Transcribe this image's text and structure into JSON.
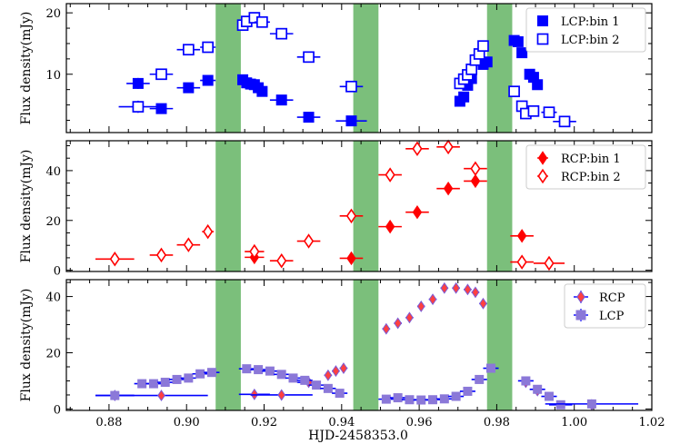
{
  "chart_data": {
    "type": "scatter",
    "xlabel": "HJD-2458353.0",
    "xlim": [
      0.869,
      1.02
    ],
    "x_ticks": [
      0.88,
      0.9,
      0.92,
      0.94,
      0.96,
      0.98,
      1.0,
      1.02
    ],
    "x_tick_labels": [
      "0.88",
      "0.90",
      "0.92",
      "0.94",
      "0.96",
      "0.98",
      "1.00",
      "1.02"
    ],
    "shaded_regions": [
      [
        0.9075,
        0.914
      ],
      [
        0.943,
        0.9495
      ],
      [
        0.9775,
        0.984
      ]
    ],
    "shade_color": "#7bbf7b",
    "panels": [
      {
        "ylabel": "Flux density(mJy)",
        "ylim": [
          0.5,
          21.5
        ],
        "y_ticks": [
          10,
          20
        ],
        "y_tick_labels": [
          "10",
          "20"
        ],
        "legend": [
          "LCP:bin 1",
          "LCP:bin 2"
        ],
        "series": [
          {
            "name": "LCP:bin 1",
            "color": "#0000ff",
            "marker": "square-filled",
            "points": [
              [
                0.8875,
                8.5,
                0.003,
                0.9
              ],
              [
                0.8935,
                4.4,
                0.003,
                0.5
              ],
              [
                0.9005,
                7.8,
                0.003,
                0.5
              ],
              [
                0.9055,
                9.0,
                0.002,
                0.5
              ],
              [
                0.9145,
                9.1,
                0.001,
                0.5
              ],
              [
                0.9155,
                8.6,
                0.001,
                0.5
              ],
              [
                0.9165,
                8.4,
                0.001,
                0.5
              ],
              [
                0.9175,
                8.3,
                0.001,
                0.5
              ],
              [
                0.9185,
                7.8,
                0.001,
                0.5
              ],
              [
                0.9195,
                7.2,
                0.001,
                0.5
              ],
              [
                0.9245,
                5.8,
                0.003,
                0.5
              ],
              [
                0.9315,
                3.0,
                0.003,
                0.5
              ],
              [
                0.9425,
                2.4,
                0.004,
                0.5
              ],
              [
                0.9705,
                5.6,
                0.0005,
                0.5
              ],
              [
                0.9715,
                6.3,
                0.0005,
                0.5
              ],
              [
                0.9725,
                8.2,
                0.0005,
                0.5
              ],
              [
                0.9735,
                9.3,
                0.0005,
                0.5
              ],
              [
                0.9765,
                11.6,
                0.0005,
                0.5
              ],
              [
                0.9775,
                12.0,
                0.0005,
                0.5
              ],
              [
                0.9845,
                15.5,
                0.0005,
                0.5
              ],
              [
                0.9855,
                15.3,
                0.0005,
                0.5
              ],
              [
                0.9865,
                13.5,
                0.0005,
                0.5
              ],
              [
                0.9885,
                10.0,
                0.0005,
                0.5
              ],
              [
                0.9895,
                9.5,
                0.0005,
                0.5
              ],
              [
                0.9905,
                8.3,
                0.0005,
                0.5
              ]
            ]
          },
          {
            "name": "LCP:bin 2",
            "color": "#0000ff",
            "marker": "square-open",
            "points": [
              [
                0.8875,
                4.7,
                0.005,
                1.0
              ],
              [
                0.8935,
                10.0,
                0.003,
                0.5
              ],
              [
                0.9005,
                14.0,
                0.003,
                0.5
              ],
              [
                0.9055,
                14.4,
                0.002,
                0.5
              ],
              [
                0.9145,
                18.0,
                0.001,
                0.5
              ],
              [
                0.9155,
                18.6,
                0.001,
                0.5
              ],
              [
                0.9175,
                19.2,
                0.001,
                0.5
              ],
              [
                0.9195,
                18.5,
                0.002,
                0.5
              ],
              [
                0.9245,
                16.6,
                0.003,
                0.5
              ],
              [
                0.9315,
                12.8,
                0.003,
                0.5
              ],
              [
                0.9425,
                8.0,
                0.003,
                0.5
              ],
              [
                0.9705,
                8.5,
                0.0005,
                0.5
              ],
              [
                0.9715,
                9.2,
                0.0005,
                0.5
              ],
              [
                0.9725,
                9.9,
                0.0005,
                0.5
              ],
              [
                0.9735,
                10.8,
                0.0005,
                0.5
              ],
              [
                0.9745,
                12.3,
                0.0005,
                0.5
              ],
              [
                0.9755,
                13.3,
                0.0005,
                0.5
              ],
              [
                0.9765,
                14.6,
                0.0005,
                0.5
              ],
              [
                0.9845,
                7.2,
                0.0005,
                0.5
              ],
              [
                0.9865,
                4.8,
                0.0005,
                0.5
              ],
              [
                0.9875,
                3.6,
                0.001,
                0.5
              ],
              [
                0.9895,
                4.0,
                0.001,
                0.5
              ],
              [
                0.9935,
                3.8,
                0.002,
                0.5
              ],
              [
                0.9975,
                2.3,
                0.003,
                0.5
              ]
            ]
          }
        ]
      },
      {
        "ylabel": "Flux density(mJy)",
        "ylim": [
          -0.5,
          52
        ],
        "y_ticks": [
          0,
          20,
          40
        ],
        "y_tick_labels": [
          "0",
          "20",
          "40"
        ],
        "legend": [
          "RCP:bin 1",
          "RCP:bin 2"
        ],
        "series": [
          {
            "name": "RCP:bin 1",
            "color": "#ff0000",
            "marker": "diamond-filled",
            "points": [
              [
                0.9175,
                5.2,
                0.0025,
                1.0
              ],
              [
                0.9425,
                4.8,
                0.003,
                1.0
              ],
              [
                0.9525,
                17.5,
                0.003,
                1.0
              ],
              [
                0.9595,
                23.3,
                0.003,
                1.0
              ],
              [
                0.9675,
                32.8,
                0.003,
                1.0
              ],
              [
                0.9745,
                35.8,
                0.003,
                1.0
              ],
              [
                0.9865,
                13.8,
                0.003,
                1.0
              ]
            ]
          },
          {
            "name": "RCP:bin 2",
            "color": "#ff0000",
            "marker": "diamond-open",
            "points": [
              [
                0.8815,
                4.5,
                0.005,
                1.0
              ],
              [
                0.8935,
                6.1,
                0.003,
                1.0
              ],
              [
                0.9005,
                10.2,
                0.003,
                1.0
              ],
              [
                0.9055,
                15.5,
                0.0015,
                1.0
              ],
              [
                0.9175,
                7.5,
                0.0025,
                1.0
              ],
              [
                0.9245,
                3.8,
                0.003,
                1.0
              ],
              [
                0.9315,
                11.7,
                0.003,
                1.0
              ],
              [
                0.9425,
                21.8,
                0.003,
                1.0
              ],
              [
                0.9525,
                38.3,
                0.003,
                1.0
              ],
              [
                0.9595,
                48.8,
                0.003,
                1.0
              ],
              [
                0.9675,
                49.5,
                0.003,
                1.0
              ],
              [
                0.9745,
                40.8,
                0.003,
                1.0
              ],
              [
                0.9865,
                3.3,
                0.003,
                1.0
              ],
              [
                0.9935,
                2.8,
                0.004,
                1.0
              ]
            ]
          }
        ]
      },
      {
        "ylabel": "Flux density(mJy)",
        "ylim": [
          -0.5,
          46
        ],
        "y_ticks": [
          0,
          20,
          40
        ],
        "y_tick_labels": [
          "0",
          "20",
          "40"
        ],
        "legend": [
          "RCP",
          "LCP"
        ],
        "series": [
          {
            "name": "RCP",
            "color": "#ff4040",
            "edge": "#7b5bd6",
            "marker": "diamond",
            "points": [
              [
                0.8815,
                4.8,
                0.005,
                0.0
              ],
              [
                0.8935,
                4.8,
                0.012,
                1.0
              ],
              [
                0.9175,
                5.2,
                0.004,
                0.0
              ],
              [
                0.9245,
                5.0,
                0.008,
                1.0
              ],
              [
                0.9315,
                9.5,
                0.003,
                1.0
              ],
              [
                0.9365,
                12.0,
                0.001,
                1.0
              ],
              [
                0.9385,
                13.5,
                0.001,
                1.0
              ],
              [
                0.9405,
                14.5,
                0.001,
                1.0
              ],
              [
                0.9515,
                28.5,
                0.001,
                1.0
              ],
              [
                0.9545,
                30.5,
                0.001,
                1.0
              ],
              [
                0.9575,
                32.5,
                0.001,
                1.0
              ],
              [
                0.9605,
                36.5,
                0.001,
                1.0
              ],
              [
                0.9635,
                39.0,
                0.001,
                1.0
              ],
              [
                0.9665,
                43.0,
                0.001,
                1.0
              ],
              [
                0.9695,
                43.0,
                0.001,
                1.0
              ],
              [
                0.9725,
                42.5,
                0.001,
                1.0
              ],
              [
                0.9745,
                41.5,
                0.001,
                1.0
              ],
              [
                0.9765,
                37.5,
                0.001,
                1.0
              ],
              [
                0.9875,
                9.5,
                0.001,
                1.0
              ],
              [
                0.9905,
                6.5,
                0.001,
                1.0
              ],
              [
                1.0045,
                1.5,
                0.001,
                1.0
              ]
            ]
          },
          {
            "name": "LCP",
            "color": "#8b78d8",
            "marker": "square",
            "points": [
              [
                0.8815,
                4.8,
                0.005,
                0.5
              ],
              [
                0.8885,
                9.0,
                0.002,
                0.5
              ],
              [
                0.8915,
                9.0,
                0.002,
                0.5
              ],
              [
                0.8945,
                9.5,
                0.002,
                0.5
              ],
              [
                0.8975,
                10.5,
                0.002,
                0.5
              ],
              [
                0.9005,
                11.0,
                0.002,
                0.5
              ],
              [
                0.9035,
                12.5,
                0.002,
                0.5
              ],
              [
                0.9065,
                13.0,
                0.002,
                0.5
              ],
              [
                0.9155,
                14.3,
                0.002,
                0.5
              ],
              [
                0.9185,
                14.0,
                0.002,
                0.5
              ],
              [
                0.9215,
                13.5,
                0.002,
                0.5
              ],
              [
                0.9245,
                12.3,
                0.002,
                0.5
              ],
              [
                0.9275,
                11.0,
                0.002,
                0.5
              ],
              [
                0.9305,
                10.2,
                0.002,
                0.5
              ],
              [
                0.9335,
                8.5,
                0.002,
                0.5
              ],
              [
                0.9365,
                7.3,
                0.002,
                0.5
              ],
              [
                0.9395,
                5.6,
                0.002,
                0.5
              ],
              [
                0.9515,
                3.5,
                0.002,
                0.5
              ],
              [
                0.9545,
                4.0,
                0.002,
                0.5
              ],
              [
                0.9575,
                3.3,
                0.002,
                0.5
              ],
              [
                0.9605,
                3.2,
                0.002,
                0.5
              ],
              [
                0.9635,
                3.3,
                0.002,
                0.5
              ],
              [
                0.9665,
                3.6,
                0.002,
                0.5
              ],
              [
                0.9695,
                4.5,
                0.002,
                0.5
              ],
              [
                0.9725,
                6.3,
                0.002,
                0.5
              ],
              [
                0.9755,
                10.5,
                0.002,
                0.5
              ],
              [
                0.9785,
                14.5,
                0.002,
                0.5
              ],
              [
                0.9875,
                10.0,
                0.002,
                0.5
              ],
              [
                0.9905,
                7.0,
                0.002,
                0.5
              ],
              [
                0.9935,
                4.5,
                0.002,
                0.5
              ],
              [
                0.9965,
                1.5,
                0.003,
                0.5
              ],
              [
                1.0045,
                1.8,
                0.012,
                0.5
              ]
            ]
          }
        ]
      }
    ]
  }
}
